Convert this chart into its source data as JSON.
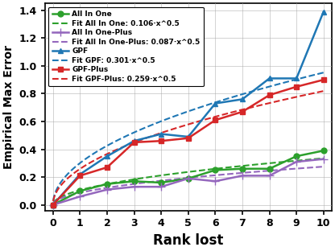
{
  "x": [
    0,
    1,
    2,
    3,
    4,
    5,
    6,
    7,
    8,
    9,
    10
  ],
  "all_in_one": [
    0.0,
    0.1,
    0.15,
    0.17,
    0.16,
    0.19,
    0.25,
    0.26,
    0.26,
    0.35,
    0.39
  ],
  "all_in_one_plus": [
    0.0,
    0.06,
    0.11,
    0.13,
    0.13,
    0.19,
    0.17,
    0.21,
    0.21,
    0.31,
    0.33
  ],
  "gpf": [
    0.0,
    0.22,
    0.35,
    0.46,
    0.51,
    0.49,
    0.73,
    0.76,
    0.91,
    0.91,
    1.39
  ],
  "gpf_plus": [
    0.0,
    0.21,
    0.27,
    0.45,
    0.46,
    0.48,
    0.61,
    0.67,
    0.79,
    0.85,
    0.9
  ],
  "fit_coeff_aio": 0.106,
  "fit_coeff_aio_plus": 0.087,
  "fit_coeff_gpf": 0.301,
  "fit_coeff_gpf_plus": 0.259,
  "xlabel": "Rank lost",
  "ylabel": "Empirical Max Error",
  "ylim": [
    -0.04,
    1.45
  ],
  "xlim": [
    -0.3,
    10.3
  ],
  "legend_labels": [
    "All In One",
    "Fit All In One: 0.106·x^0.5",
    "All In One-Plus",
    "Fit All In One-Plus: 0.087·x^0.5",
    "GPF",
    "Fit GPF: 0.301·x^0.5",
    "GPF-Plus",
    "Fit GPF-Plus: 0.259·x^0.5"
  ],
  "color_aio": "#2ca02c",
  "color_aio_plus": "#9467bd",
  "color_gpf": "#1f77b4",
  "color_gpf_plus": "#d62728",
  "yticks": [
    0.0,
    0.2,
    0.4,
    0.6,
    0.8,
    1.0,
    1.2,
    1.4
  ],
  "xticks": [
    0,
    1,
    2,
    3,
    4,
    5,
    6,
    7,
    8,
    9,
    10
  ],
  "fig_width": 4.16,
  "fig_height": 3.12
}
